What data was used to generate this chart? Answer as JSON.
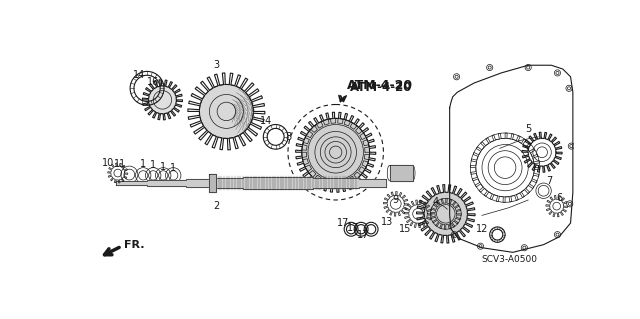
{
  "bg_color": "#ffffff",
  "line_color": "#1a1a1a",
  "atm_label": "ATM-4-20",
  "scv_label": "SCV3-A0500",
  "fr_label": "FR."
}
